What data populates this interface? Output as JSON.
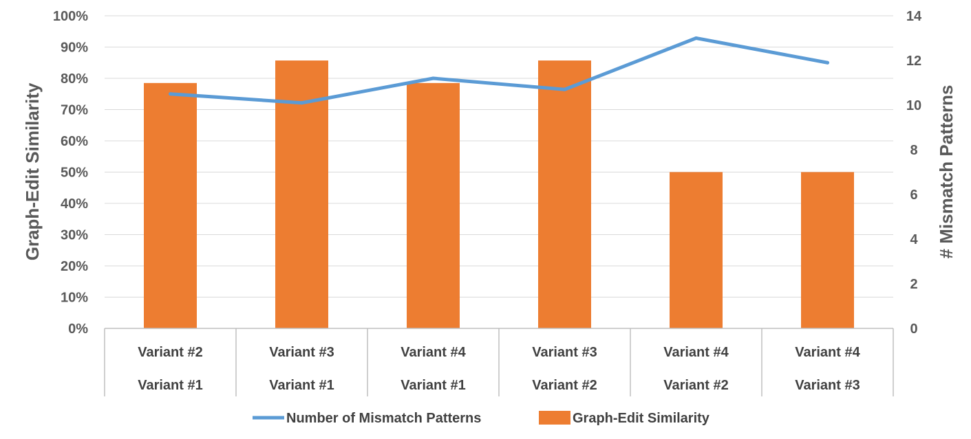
{
  "chart_data": {
    "type": "bar",
    "categories": [
      [
        "Variant #2",
        "Variant #1"
      ],
      [
        "Variant #3",
        "Variant #1"
      ],
      [
        "Variant #4",
        "Variant #1"
      ],
      [
        "Variant #3",
        "Variant #2"
      ],
      [
        "Variant #4",
        "Variant #2"
      ],
      [
        "Variant #4",
        "Variant #3"
      ]
    ],
    "series": [
      {
        "name": "Graph-Edit Similarity",
        "type": "bar",
        "axis": "left",
        "color": "#ED7D31",
        "values": [
          0.785,
          0.857,
          0.785,
          0.857,
          0.5,
          0.5
        ]
      },
      {
        "name": "Number of Mismatch Patterns",
        "type": "line",
        "axis": "right",
        "color": "#5B9BD5",
        "values": [
          10.5,
          10.1,
          11.2,
          10.7,
          13.0,
          11.9
        ]
      }
    ],
    "ylabel": "Graph-Edit Similarity",
    "y2label": "# Mismatch Patterns",
    "ylim": [
      0,
      1
    ],
    "y2lim": [
      0,
      14
    ],
    "yticks": [
      "0%",
      "10%",
      "20%",
      "30%",
      "40%",
      "50%",
      "60%",
      "70%",
      "80%",
      "90%",
      "100%"
    ],
    "y2ticks": [
      "0",
      "2",
      "4",
      "6",
      "8",
      "10",
      "12",
      "14"
    ],
    "grid": true,
    "legend": "bottom"
  }
}
